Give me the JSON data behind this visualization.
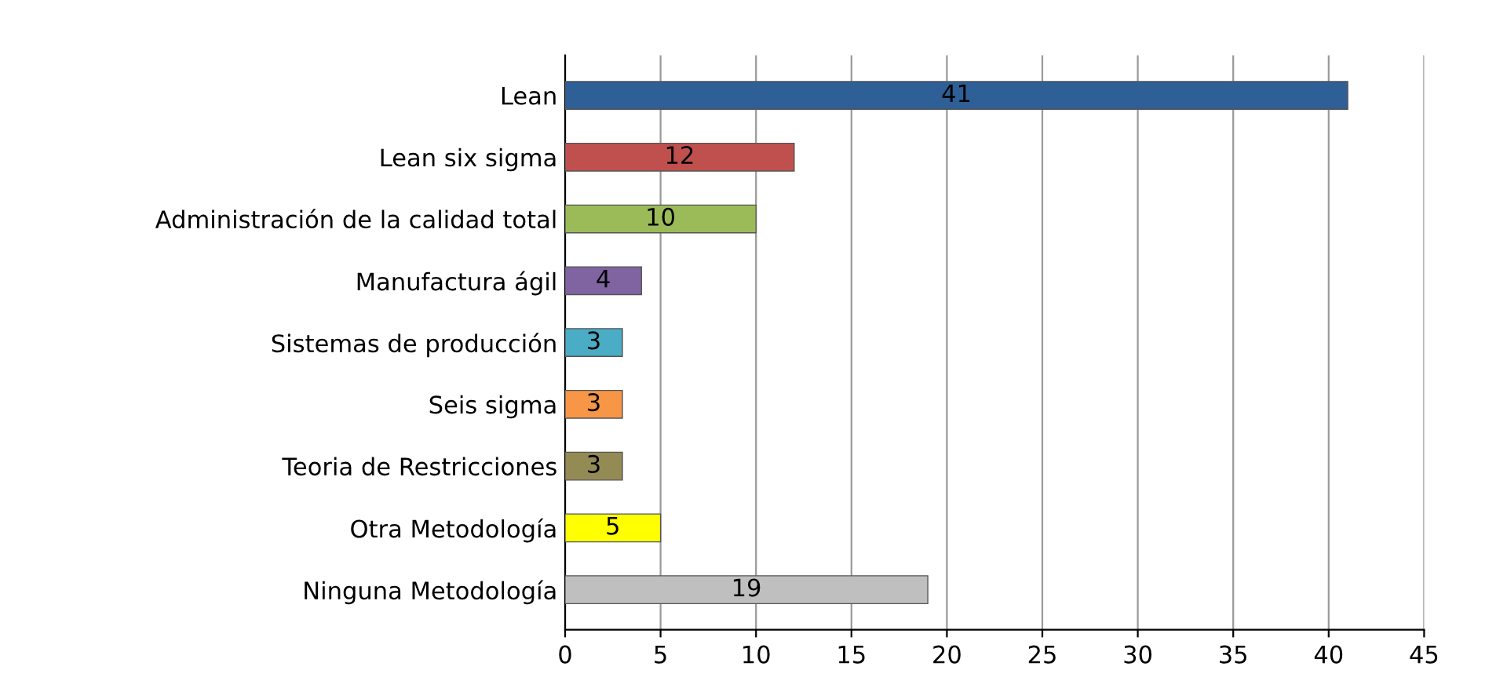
{
  "chart_data": {
    "type": "bar",
    "orientation": "horizontal",
    "categories": [
      "Lean",
      "Lean six sigma",
      "Administración de la calidad total",
      "Manufactura ágil",
      "Sistemas de producción",
      "Seis sigma",
      "Teoria de Restricciones",
      "Otra Metodología",
      "Ninguna Metodología"
    ],
    "values": [
      41,
      12,
      10,
      4,
      3,
      3,
      3,
      5,
      19
    ],
    "colors": [
      "#2f5f97",
      "#c0504d",
      "#9bbb59",
      "#8064a2",
      "#4bacc6",
      "#f79646",
      "#948a54",
      "#ffff00",
      "#bfbfbf"
    ],
    "xlim": [
      0,
      45
    ],
    "xticks": [
      0,
      5,
      10,
      15,
      20,
      25,
      30,
      35,
      40,
      45
    ],
    "grid": "x",
    "data_labels": true
  }
}
